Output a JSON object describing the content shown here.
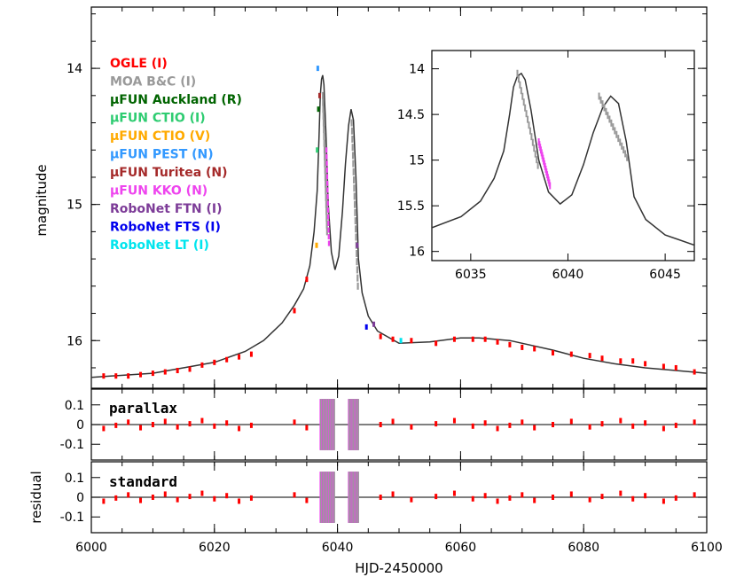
{
  "chart_data": {
    "type": "scatter",
    "xlabel": "HJD-2450000",
    "x_ticks": [
      "6000",
      "6020",
      "6040",
      "6060",
      "6080",
      "6100"
    ],
    "xlim": [
      6000,
      6100
    ],
    "main": {
      "ylabel": "magnitude",
      "ylim": [
        16.35,
        13.55
      ],
      "y_ticks": [
        "14",
        "15",
        "16"
      ],
      "model_curve": [
        [
          6000,
          16.27
        ],
        [
          6010,
          16.24
        ],
        [
          6020,
          16.16
        ],
        [
          6025,
          16.08
        ],
        [
          6028,
          16.0
        ],
        [
          6031,
          15.87
        ],
        [
          6033,
          15.74
        ],
        [
          6034.5,
          15.62
        ],
        [
          6035.5,
          15.45
        ],
        [
          6036.2,
          15.2
        ],
        [
          6036.7,
          14.9
        ],
        [
          6037.0,
          14.5
        ],
        [
          6037.2,
          14.2
        ],
        [
          6037.4,
          14.08
        ],
        [
          6037.6,
          14.05
        ],
        [
          6037.8,
          14.12
        ],
        [
          6038.1,
          14.45
        ],
        [
          6038.5,
          15.0
        ],
        [
          6039.0,
          15.35
        ],
        [
          6039.6,
          15.48
        ],
        [
          6040.2,
          15.38
        ],
        [
          6040.8,
          15.05
        ],
        [
          6041.3,
          14.7
        ],
        [
          6041.8,
          14.42
        ],
        [
          6042.2,
          14.3
        ],
        [
          6042.6,
          14.38
        ],
        [
          6043.0,
          14.8
        ],
        [
          6043.4,
          15.4
        ],
        [
          6044.0,
          15.65
        ],
        [
          6045.0,
          15.82
        ],
        [
          6046.5,
          15.93
        ],
        [
          6050,
          16.02
        ],
        [
          6055,
          16.01
        ],
        [
          6060,
          15.98
        ],
        [
          6063,
          15.98
        ],
        [
          6068,
          16.0
        ],
        [
          6075,
          16.07
        ],
        [
          6080,
          16.13
        ],
        [
          6085,
          16.17
        ],
        [
          6090,
          16.2
        ],
        [
          6095,
          16.22
        ],
        [
          6100,
          16.24
        ]
      ],
      "ogle_points": [
        [
          6002,
          16.26
        ],
        [
          6004,
          16.26
        ],
        [
          6006,
          16.26
        ],
        [
          6008,
          16.25
        ],
        [
          6010,
          16.24
        ],
        [
          6012,
          16.23
        ],
        [
          6014,
          16.22
        ],
        [
          6016,
          16.21
        ],
        [
          6018,
          16.18
        ],
        [
          6020,
          16.16
        ],
        [
          6022,
          16.14
        ],
        [
          6024,
          16.12
        ],
        [
          6026,
          16.1
        ],
        [
          6033,
          15.78
        ],
        [
          6035,
          15.55
        ],
        [
          6047,
          15.97
        ],
        [
          6049,
          15.99
        ],
        [
          6052,
          16.0
        ],
        [
          6056,
          16.02
        ],
        [
          6059,
          15.99
        ],
        [
          6062,
          15.99
        ],
        [
          6064,
          15.99
        ],
        [
          6066,
          16.01
        ],
        [
          6068,
          16.03
        ],
        [
          6070,
          16.05
        ],
        [
          6072,
          16.06
        ],
        [
          6075,
          16.09
        ],
        [
          6078,
          16.1
        ],
        [
          6081,
          16.11
        ],
        [
          6083,
          16.13
        ],
        [
          6086,
          16.15
        ],
        [
          6088,
          16.15
        ],
        [
          6090,
          16.17
        ],
        [
          6093,
          16.19
        ],
        [
          6095,
          16.2
        ],
        [
          6098,
          16.23
        ]
      ],
      "legend": [
        {
          "name": "OGLE (I)",
          "color": "#ff0000"
        },
        {
          "name": "MOA B&C (I)",
          "color": "#999999"
        },
        {
          "name": "μFUN Auckland (R)",
          "color": "#006400"
        },
        {
          "name": "μFUN CTIO (I)",
          "color": "#2ecc71"
        },
        {
          "name": "μFUN CTIO (V)",
          "color": "#ffaa00"
        },
        {
          "name": "μFUN PEST (N)",
          "color": "#3399ff"
        },
        {
          "name": "μFUN Turitea (N)",
          "color": "#a52a2a"
        },
        {
          "name": "μFUN KKO (N)",
          "color": "#ee44ee"
        },
        {
          "name": "RoboNet FTN (I)",
          "color": "#7d3c98"
        },
        {
          "name": "RoboNet FTS (I)",
          "color": "#0000ee"
        },
        {
          "name": "RoboNet LT (I)",
          "color": "#00e5ee"
        }
      ]
    },
    "inset": {
      "xlim": [
        6033,
        6046.5
      ],
      "ylim": [
        16.1,
        13.8
      ],
      "x_ticks": [
        "6035",
        "6040",
        "6045"
      ],
      "y_ticks": [
        "14",
        "14.5",
        "15",
        "15.5",
        "16"
      ]
    },
    "residual_panels": [
      {
        "name": "parallax",
        "ylim": [
          -0.18,
          0.18
        ],
        "y_ticks": [
          "0.1",
          "0",
          "-0.1"
        ]
      },
      {
        "name": "standard",
        "ylim": [
          -0.18,
          0.18
        ],
        "y_ticks": [
          "0.1",
          "0",
          "-0.1"
        ]
      }
    ],
    "residual_ylabel": "residual"
  }
}
